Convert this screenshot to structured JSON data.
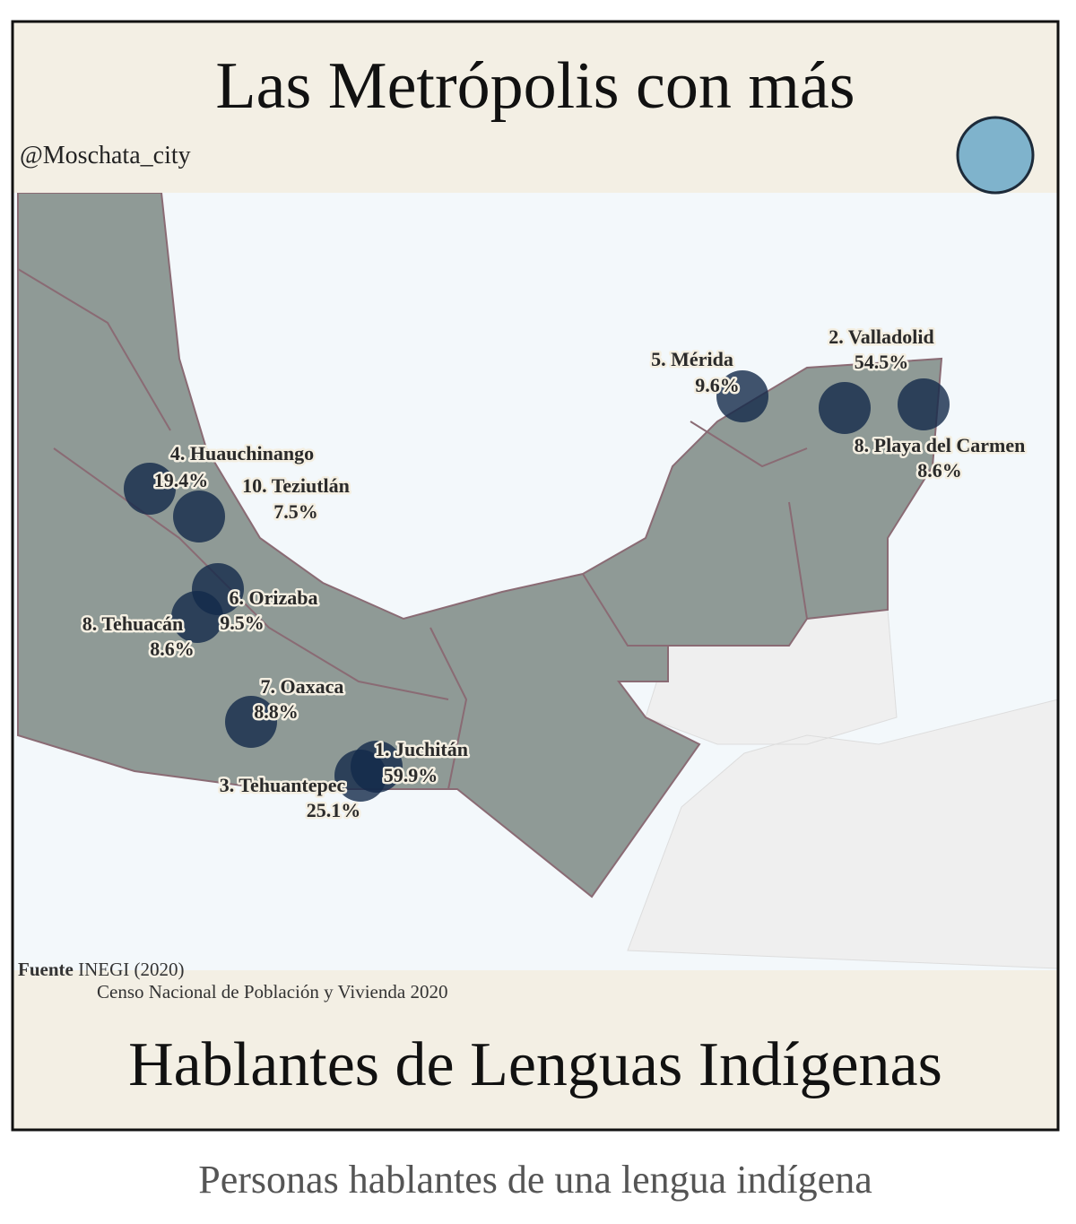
{
  "header": {
    "title": "Las Metrópolis con más",
    "handle": "@Moschata_city"
  },
  "cities": [
    {
      "name": "1. Juchitán",
      "value": "59.9%"
    },
    {
      "name": "2. Valladolid",
      "value": "54.5%"
    },
    {
      "name": "3. Tehuantepec",
      "value": "25.1%"
    },
    {
      "name": "4. Huauchinango",
      "value": "19.4%"
    },
    {
      "name": "5. Mérida",
      "value": "9.6%"
    },
    {
      "name": "6. Orizaba",
      "value": "9.5%"
    },
    {
      "name": "7. Oaxaca",
      "value": "8.8%"
    },
    {
      "name": "8. Tehuacán",
      "value": "8.6%"
    },
    {
      "name": "8. Playa del Carmen",
      "value": "8.6%"
    },
    {
      "name": "10. Teziutlán",
      "value": "7.5%"
    }
  ],
  "source": {
    "label": "Fuente",
    "org": "INEGI (2020)",
    "detail": "Censo Nacional de Población y Vivienda 2020"
  },
  "footer": {
    "title": "Hablantes de Lenguas Indígenas"
  },
  "caption": "Personas hablantes de una lengua indígena"
}
